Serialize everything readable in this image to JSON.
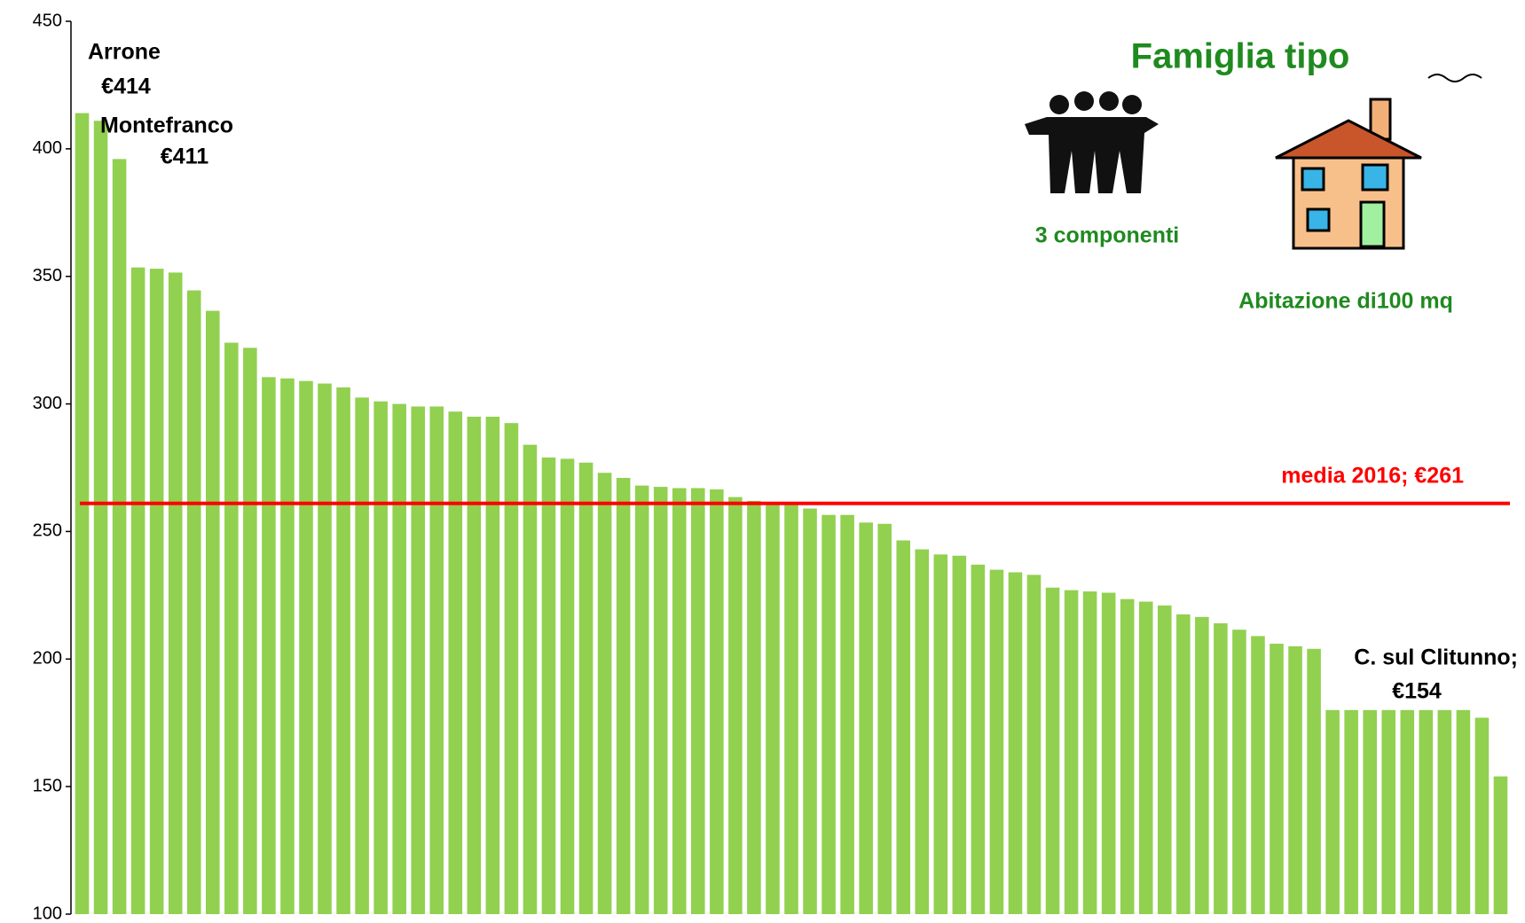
{
  "chart_data": {
    "type": "bar",
    "values": [
      414,
      411,
      396,
      353.5,
      353,
      351.5,
      344.5,
      336.5,
      324,
      322,
      310.5,
      310,
      309,
      308,
      306.5,
      302.5,
      301,
      300,
      299,
      299,
      297,
      295,
      295,
      292.5,
      284,
      279,
      278.5,
      277,
      273,
      271,
      268,
      267.5,
      267,
      267,
      266.5,
      263.5,
      262,
      261,
      260.5,
      259,
      256.5,
      256.5,
      253.5,
      253,
      246.5,
      243,
      241,
      240.5,
      237,
      235,
      234,
      233,
      228,
      227,
      226.5,
      226,
      223.5,
      222.5,
      221,
      217.5,
      216.5,
      214,
      211.5,
      209,
      206,
      205,
      204,
      180,
      180,
      180,
      180,
      180,
      180,
      180,
      180,
      177,
      154
    ],
    "color": "#92d050",
    "ylim": [
      100,
      450
    ],
    "yticks": [
      100,
      150,
      200,
      250,
      300,
      350,
      400,
      450
    ],
    "reference_line": {
      "value": 261,
      "label": "media 2016; €261",
      "color": "#ff0000"
    },
    "annotations": [
      {
        "lines": [
          "Arrone",
          "€414"
        ]
      },
      {
        "lines": [
          "Montefranco",
          "€411"
        ]
      },
      {
        "lines": [
          "C. sul Clitunno;",
          "€154"
        ]
      }
    ],
    "title": "Famiglia tipo",
    "family_label": "3 componenti",
    "house_label": "Abitazione di100 mq"
  }
}
